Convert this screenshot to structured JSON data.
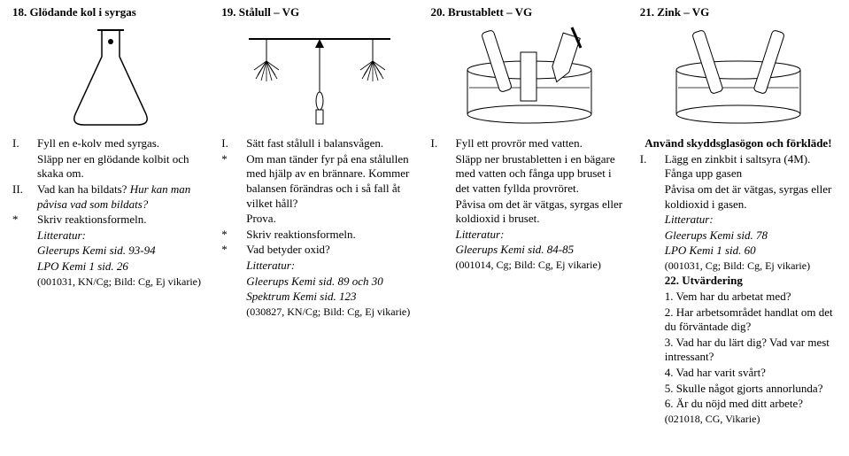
{
  "cols": [
    {
      "header": "18. Glödande kol i syrgas",
      "lines": [
        {
          "n": "I.",
          "t": "Fyll en e-kolv med syrgas."
        },
        {
          "n": "",
          "t": "Släpp ner en glödande kolbit och skaka om."
        },
        {
          "n": "II.",
          "t": "Vad kan ha bildats? Hur kan man påvisa vad som bildats?",
          "it": true,
          "it_from": "Vad kan ha bildats?"
        },
        {
          "n": "*",
          "t": "Skriv reaktionsformeln."
        },
        {
          "n": "",
          "t": "Litteratur:",
          "it": true
        },
        {
          "n": "",
          "t": "Gleerups Kemi sid. 93-94",
          "it": true
        },
        {
          "n": "",
          "t": "LPO Kemi 1 sid. 26",
          "it": true
        },
        {
          "n": "",
          "t": " (001031, KN/Cg; Bild: Cg, Ej vikarie)",
          "small": true
        }
      ]
    },
    {
      "header": "19. Stålull – VG",
      "lines": [
        {
          "n": "I.",
          "t": "Sätt fast stålull i balansvågen."
        },
        {
          "n": "*",
          "t": "Om man tänder fyr på ena stålullen med hjälp av en brännare. Kommer balansen förändras och i så fall åt vilket håll?"
        },
        {
          "n": "",
          "t": "Prova."
        },
        {
          "n": "*",
          "t": "Skriv reaktionsformeln."
        },
        {
          "n": "*",
          "t": "Vad betyder oxid?"
        },
        {
          "n": "",
          "t": "Litteratur:",
          "it": true
        },
        {
          "n": "",
          "t": "Gleerups Kemi sid. 89 och 30",
          "it": true
        },
        {
          "n": "",
          "t": "Spektrum Kemi sid. 123",
          "it": true
        },
        {
          "n": "",
          "t": " (030827, KN/Cg; Bild: Cg, Ej vikarie)",
          "small": true
        }
      ]
    },
    {
      "header": "20. Brustablett – VG",
      "lines": [
        {
          "n": "I.",
          "t": "Fyll ett provrör med vatten."
        },
        {
          "n": "",
          "t": "Släpp ner brustabletten i en bägare med vatten och fånga upp bruset i det vatten fyllda provröret."
        },
        {
          "n": "",
          "t": "Påvisa om det är vätgas, syrgas eller koldioxid i bruset."
        },
        {
          "n": "",
          "t": "Litteratur:",
          "it": true
        },
        {
          "n": "",
          "t": "Gleerups Kemi sid. 84-85",
          "it": true
        },
        {
          "n": "",
          "t": " (001014, Cg; Bild: Cg, Ej vikarie)",
          "small": true
        }
      ]
    },
    {
      "header": "21. Zink – VG",
      "lines": [
        {
          "n": "",
          "t": "Använd skyddsglasögon och förkläde!",
          "b": true,
          "center": true
        },
        {
          "n": "I.",
          "t": "Lägg en zinkbit i saltsyra (4M). Fånga upp gasen"
        },
        {
          "n": "",
          "t": "Påvisa om det är vätgas, syrgas eller koldioxid i gasen."
        },
        {
          "n": "",
          "t": "Litteratur:",
          "it": true
        },
        {
          "n": "",
          "t": "Gleerups Kemi sid. 78",
          "it": true
        },
        {
          "n": "",
          "t": "LPO Kemi 1 sid. 60",
          "it": true
        },
        {
          "n": "",
          "t": " (001031, Cg; Bild: Cg, Ej vikarie)",
          "small": true
        },
        {
          "n": "",
          "t": "22. Utvärdering",
          "b": true
        },
        {
          "n": "",
          "t": "1. Vem har du arbetat med?"
        },
        {
          "n": "",
          "t": "2. Har arbetsområdet handlat om det du förväntade dig?"
        },
        {
          "n": "",
          "t": "3. Vad har du lärt dig? Vad var mest intressant?"
        },
        {
          "n": "",
          "t": "4. Vad har varit svårt?"
        },
        {
          "n": "",
          "t": "5. Skulle något gjorts annorlunda?"
        },
        {
          "n": "",
          "t": "6. Är du nöjd med ditt arbete?"
        },
        {
          "n": "",
          "t": " (021018, CG, Vikarie)",
          "small": true
        }
      ]
    }
  ]
}
